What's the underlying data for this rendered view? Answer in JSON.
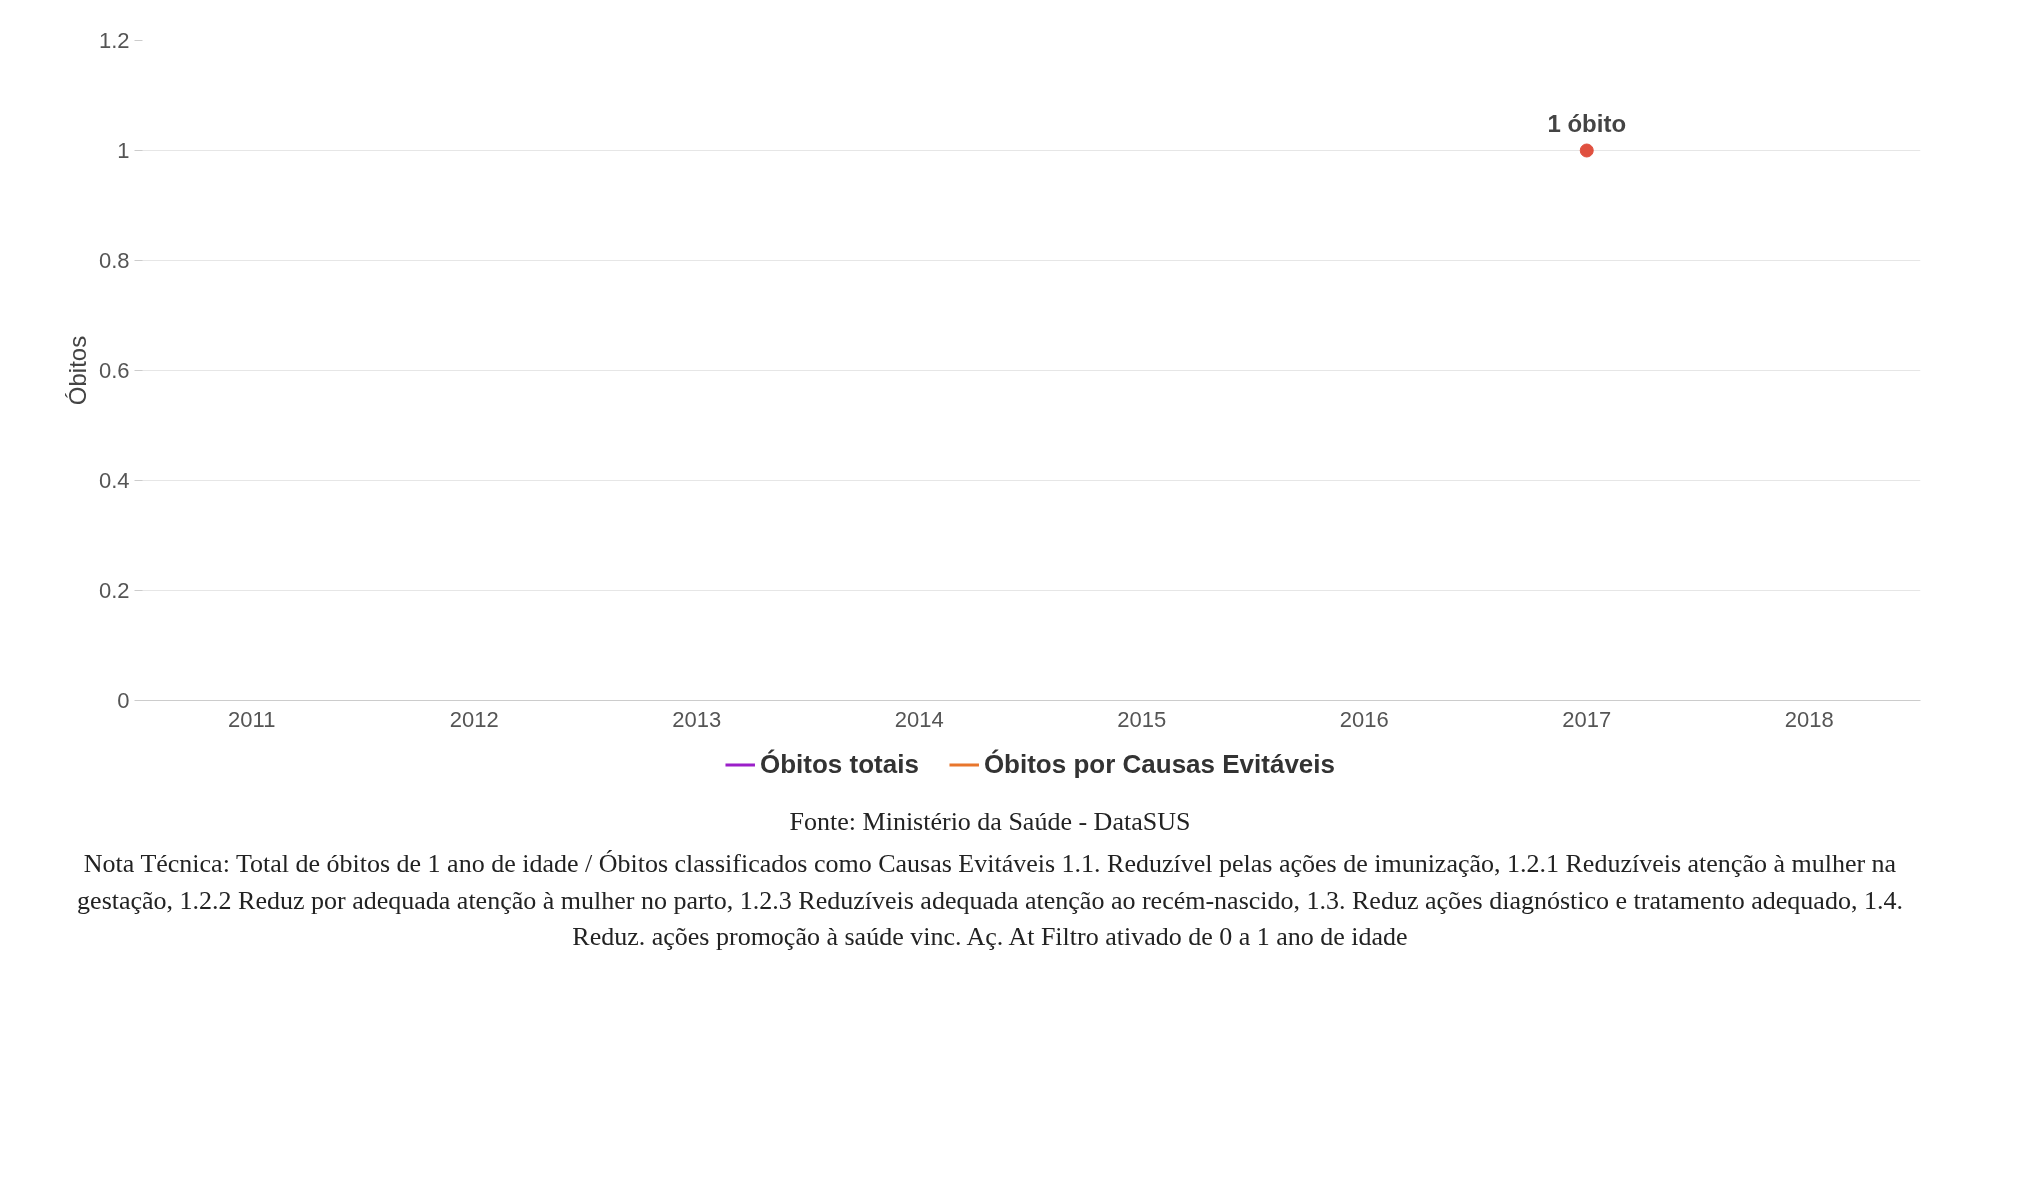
{
  "chart_data": {
    "type": "line",
    "ylabel": "Óbitos",
    "categories": [
      "2011",
      "2012",
      "2013",
      "2014",
      "2015",
      "2016",
      "2017",
      "2018"
    ],
    "series": [
      {
        "name": "Óbitos totais",
        "color": "#9b1fc9",
        "values": [
          null,
          null,
          null,
          null,
          null,
          null,
          null,
          null
        ]
      },
      {
        "name": "Óbitos por Causas Evitáveis",
        "color": "#e8762d",
        "colors": [
          null,
          null,
          null,
          null,
          null,
          null,
          "#e0503f",
          null
        ],
        "values": [
          null,
          null,
          null,
          null,
          null,
          null,
          1,
          null
        ]
      }
    ],
    "ylim": [
      0,
      1.2
    ],
    "yticks": [
      0,
      0.2,
      0.4,
      0.6,
      0.8,
      1,
      1.2
    ],
    "grid": "y",
    "legend": "bottom",
    "marker": "circle",
    "line_style": "solid",
    "annotations": [
      {
        "text": "1 óbito",
        "x": "2017",
        "y": 1
      },
      "Fonte: Ministério da Saúde - DataSUS",
      "Nota Técnica: Total de óbitos de 1 ano de idade / Óbitos classificados como Causas Evitáveis 1.1. Reduzível pelas ações de imunização, 1.2.1 Reduzíveis atenção à mulher na gestação, 1.2.2 Reduz por adequada atenção à mulher no parto, 1.2.3 Reduzíveis adequada atenção ao recém-nascido, 1.3. Reduz ações diagnóstico e tratamento adequado, 1.4. Reduz. ações promoção à saúde vinc. Aç. At Filtro ativado de 0 a 1 ano de idade"
    ]
  }
}
